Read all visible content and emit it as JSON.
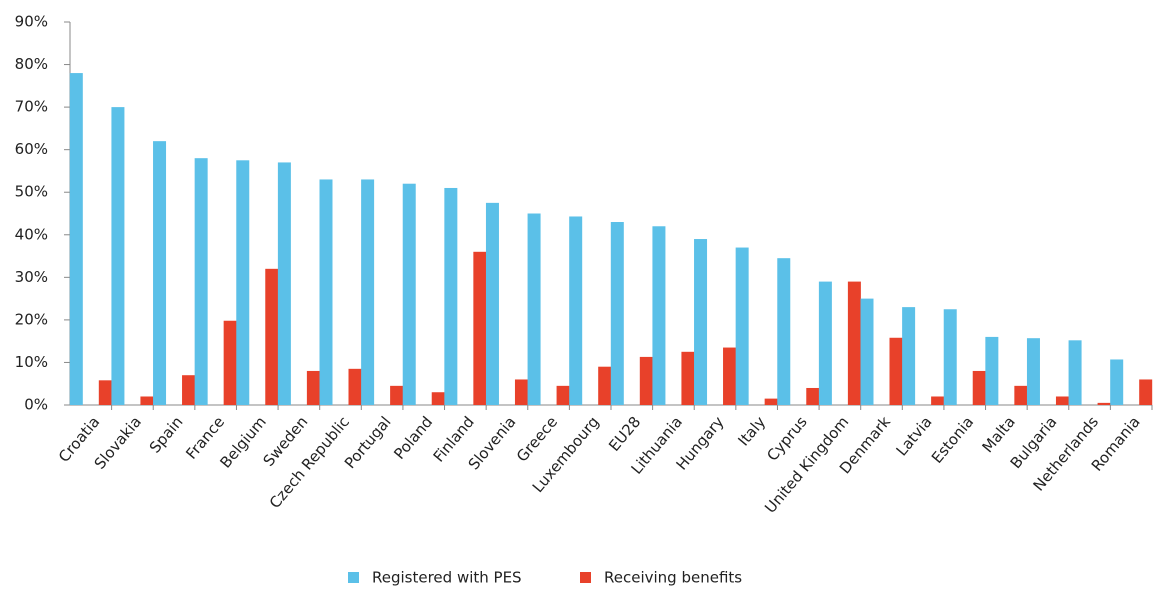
{
  "chart_data": {
    "type": "bar",
    "categories": [
      "Croatia",
      "Slovakia",
      "Spain",
      "France",
      "Belgium",
      "Sweden",
      "Czech Republic",
      "Portugal",
      "Poland",
      "Finland",
      "Slovenia",
      "Greece",
      "Luxembourg",
      "EU28",
      "Lithuania",
      "Hungary",
      "Italy",
      "Cyprus",
      "United Kingdom",
      "Denmark",
      "Latvia",
      "Estonia",
      "Malta",
      "Bulgaria",
      "Netherlands",
      "Romania"
    ],
    "series": [
      {
        "name": "Registered with PES",
        "color": "#5bc0e8",
        "values": [
          78,
          70,
          62,
          58,
          57.5,
          57,
          53,
          53,
          52,
          51,
          47.5,
          45,
          44.3,
          43,
          42,
          39,
          37,
          34.5,
          29,
          25,
          23,
          22.5,
          16,
          15.7,
          15.2,
          10.7
        ]
      },
      {
        "name": "Receiving benefits",
        "color": "#e8412a",
        "values": [
          5.8,
          2,
          7,
          19.8,
          32,
          8,
          8.5,
          4.5,
          3,
          36,
          6,
          4.5,
          9,
          11.3,
          12.5,
          13.5,
          1.5,
          4,
          29,
          15.8,
          2,
          8,
          4.5,
          2,
          0.5,
          6
        ]
      }
    ],
    "ylim": [
      0,
      90
    ],
    "yticks": [
      {
        "value": 0,
        "label": "0%"
      },
      {
        "value": 10,
        "label": "10%"
      },
      {
        "value": 20,
        "label": "20%"
      },
      {
        "value": 30,
        "label": "30%"
      },
      {
        "value": 40,
        "label": "40%"
      },
      {
        "value": 50,
        "label": "50%"
      },
      {
        "value": 60,
        "label": "60%"
      },
      {
        "value": 70,
        "label": "70%"
      },
      {
        "value": 80,
        "label": "80%"
      },
      {
        "value": 90,
        "label": "90%"
      }
    ],
    "grid": false,
    "legend": "bottom"
  }
}
